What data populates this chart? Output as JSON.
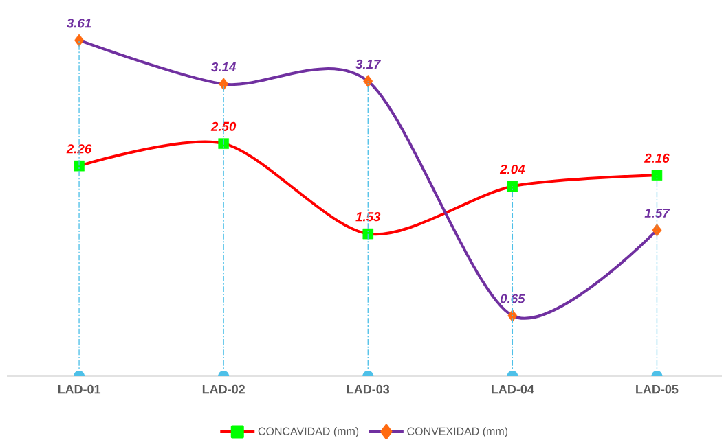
{
  "chart_data": {
    "type": "line",
    "categories": [
      "LAD-01",
      "LAD-02",
      "LAD-03",
      "LAD-04",
      "LAD-05"
    ],
    "legend": "bottom",
    "grid": "x",
    "series": [
      {
        "name": "CONCAVIDAD (mm)",
        "color": "#ff0000",
        "marker": "square",
        "colors": [
          "#00ff00",
          "#00ff00",
          "#00ff00",
          "#00ff00",
          "#00ff00"
        ],
        "values": [
          2.26,
          2.5,
          1.53,
          2.04,
          2.16
        ],
        "value_labels": [
          "2.26",
          "2.50",
          "1.53",
          "2.04",
          "2.16"
        ]
      },
      {
        "name": "CONVEXIDAD (mm)",
        "color": "#7030a0",
        "marker": "diamond",
        "colors": [
          "#ff6a10",
          "#ff6a10",
          "#ff6a10",
          "#ff6a10",
          "#ff6a10"
        ],
        "values": [
          3.61,
          3.14,
          3.17,
          0.65,
          1.57
        ],
        "value_labels": [
          "3.61",
          "3.14",
          "3.17",
          "0.65",
          "1.57"
        ]
      }
    ]
  }
}
